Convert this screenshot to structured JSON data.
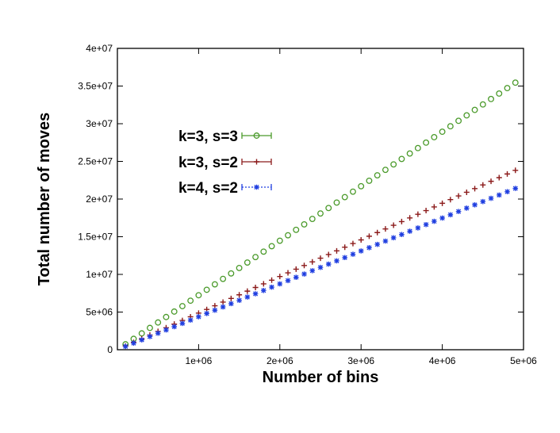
{
  "chart_data": {
    "type": "scatter",
    "xlabel": "Number of bins",
    "ylabel": "Total number of moves",
    "xlim": [
      0,
      5000000
    ],
    "ylim": [
      0,
      40000000
    ],
    "x_ticks": [
      "1e+06",
      "2e+06",
      "3e+06",
      "4e+06",
      "5e+06"
    ],
    "y_ticks": [
      "0",
      "5e+06",
      "1e+07",
      "1.5e+07",
      "2e+07",
      "2.5e+07",
      "3e+07",
      "3.5e+07",
      "4e+07"
    ],
    "grid": false,
    "legend_position": "upper-left",
    "x": {
      "start": 0,
      "step": 100000,
      "count": 50
    },
    "series": [
      {
        "name": "k=3, s=3",
        "color": "#4a9a2a",
        "marker": "circle",
        "slope": 7.235
      },
      {
        "name": "k=3, s=2",
        "color": "#8b1a1a",
        "marker": "plus",
        "slope": 4.86
      },
      {
        "name": "k=4, s=2",
        "color": "#1f3ee0",
        "marker": "star",
        "slope": 4.37
      }
    ]
  }
}
